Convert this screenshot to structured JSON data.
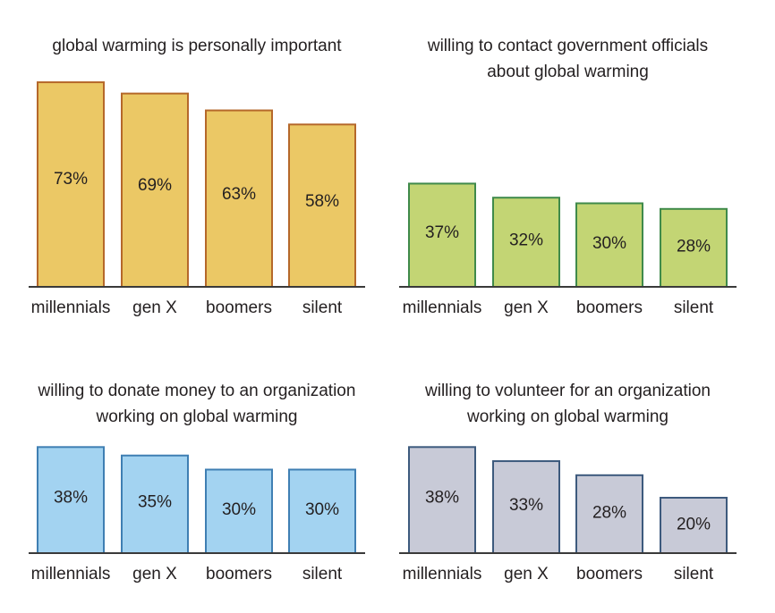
{
  "chart_data": [
    {
      "type": "bar",
      "title": [
        "global warming is personally important"
      ],
      "categories": [
        "millennials",
        "gen X",
        "boomers",
        "silent"
      ],
      "values": [
        73,
        69,
        63,
        58
      ],
      "value_labels": [
        "73%",
        "69%",
        "63%",
        "58%"
      ],
      "xlabel": "",
      "ylabel": "",
      "ylim": [
        0,
        100
      ],
      "grid": false,
      "colors": {
        "fill": "#ebc865",
        "stroke": "#b5682a"
      }
    },
    {
      "type": "bar",
      "title": [
        "willing to contact government officials",
        "about global warming"
      ],
      "categories": [
        "millennials",
        "gen X",
        "boomers",
        "silent"
      ],
      "values": [
        37,
        32,
        30,
        28
      ],
      "value_labels": [
        "37%",
        "32%",
        "30%",
        "28%"
      ],
      "xlabel": "",
      "ylabel": "",
      "ylim": [
        0,
        100
      ],
      "grid": false,
      "colors": {
        "fill": "#c3d574",
        "stroke": "#3f8a4a"
      }
    },
    {
      "type": "bar",
      "title": [
        "willing to donate money to an organization",
        "working on global warming"
      ],
      "categories": [
        "millennials",
        "gen X",
        "boomers",
        "silent"
      ],
      "values": [
        38,
        35,
        30,
        30
      ],
      "value_labels": [
        "38%",
        "35%",
        "30%",
        "30%"
      ],
      "xlabel": "",
      "ylabel": "",
      "ylim": [
        0,
        100
      ],
      "grid": false,
      "colors": {
        "fill": "#a3d3f1",
        "stroke": "#3f7fb3"
      }
    },
    {
      "type": "bar",
      "title": [
        "willing to volunteer for an organization",
        "working on global warming"
      ],
      "categories": [
        "millennials",
        "gen X",
        "boomers",
        "silent"
      ],
      "values": [
        38,
        33,
        28,
        20
      ],
      "value_labels": [
        "38%",
        "33%",
        "28%",
        "20%"
      ],
      "xlabel": "",
      "ylabel": "",
      "ylim": [
        0,
        100
      ],
      "grid": false,
      "colors": {
        "fill": "#c8cad7",
        "stroke": "#3d5a7d"
      }
    }
  ]
}
